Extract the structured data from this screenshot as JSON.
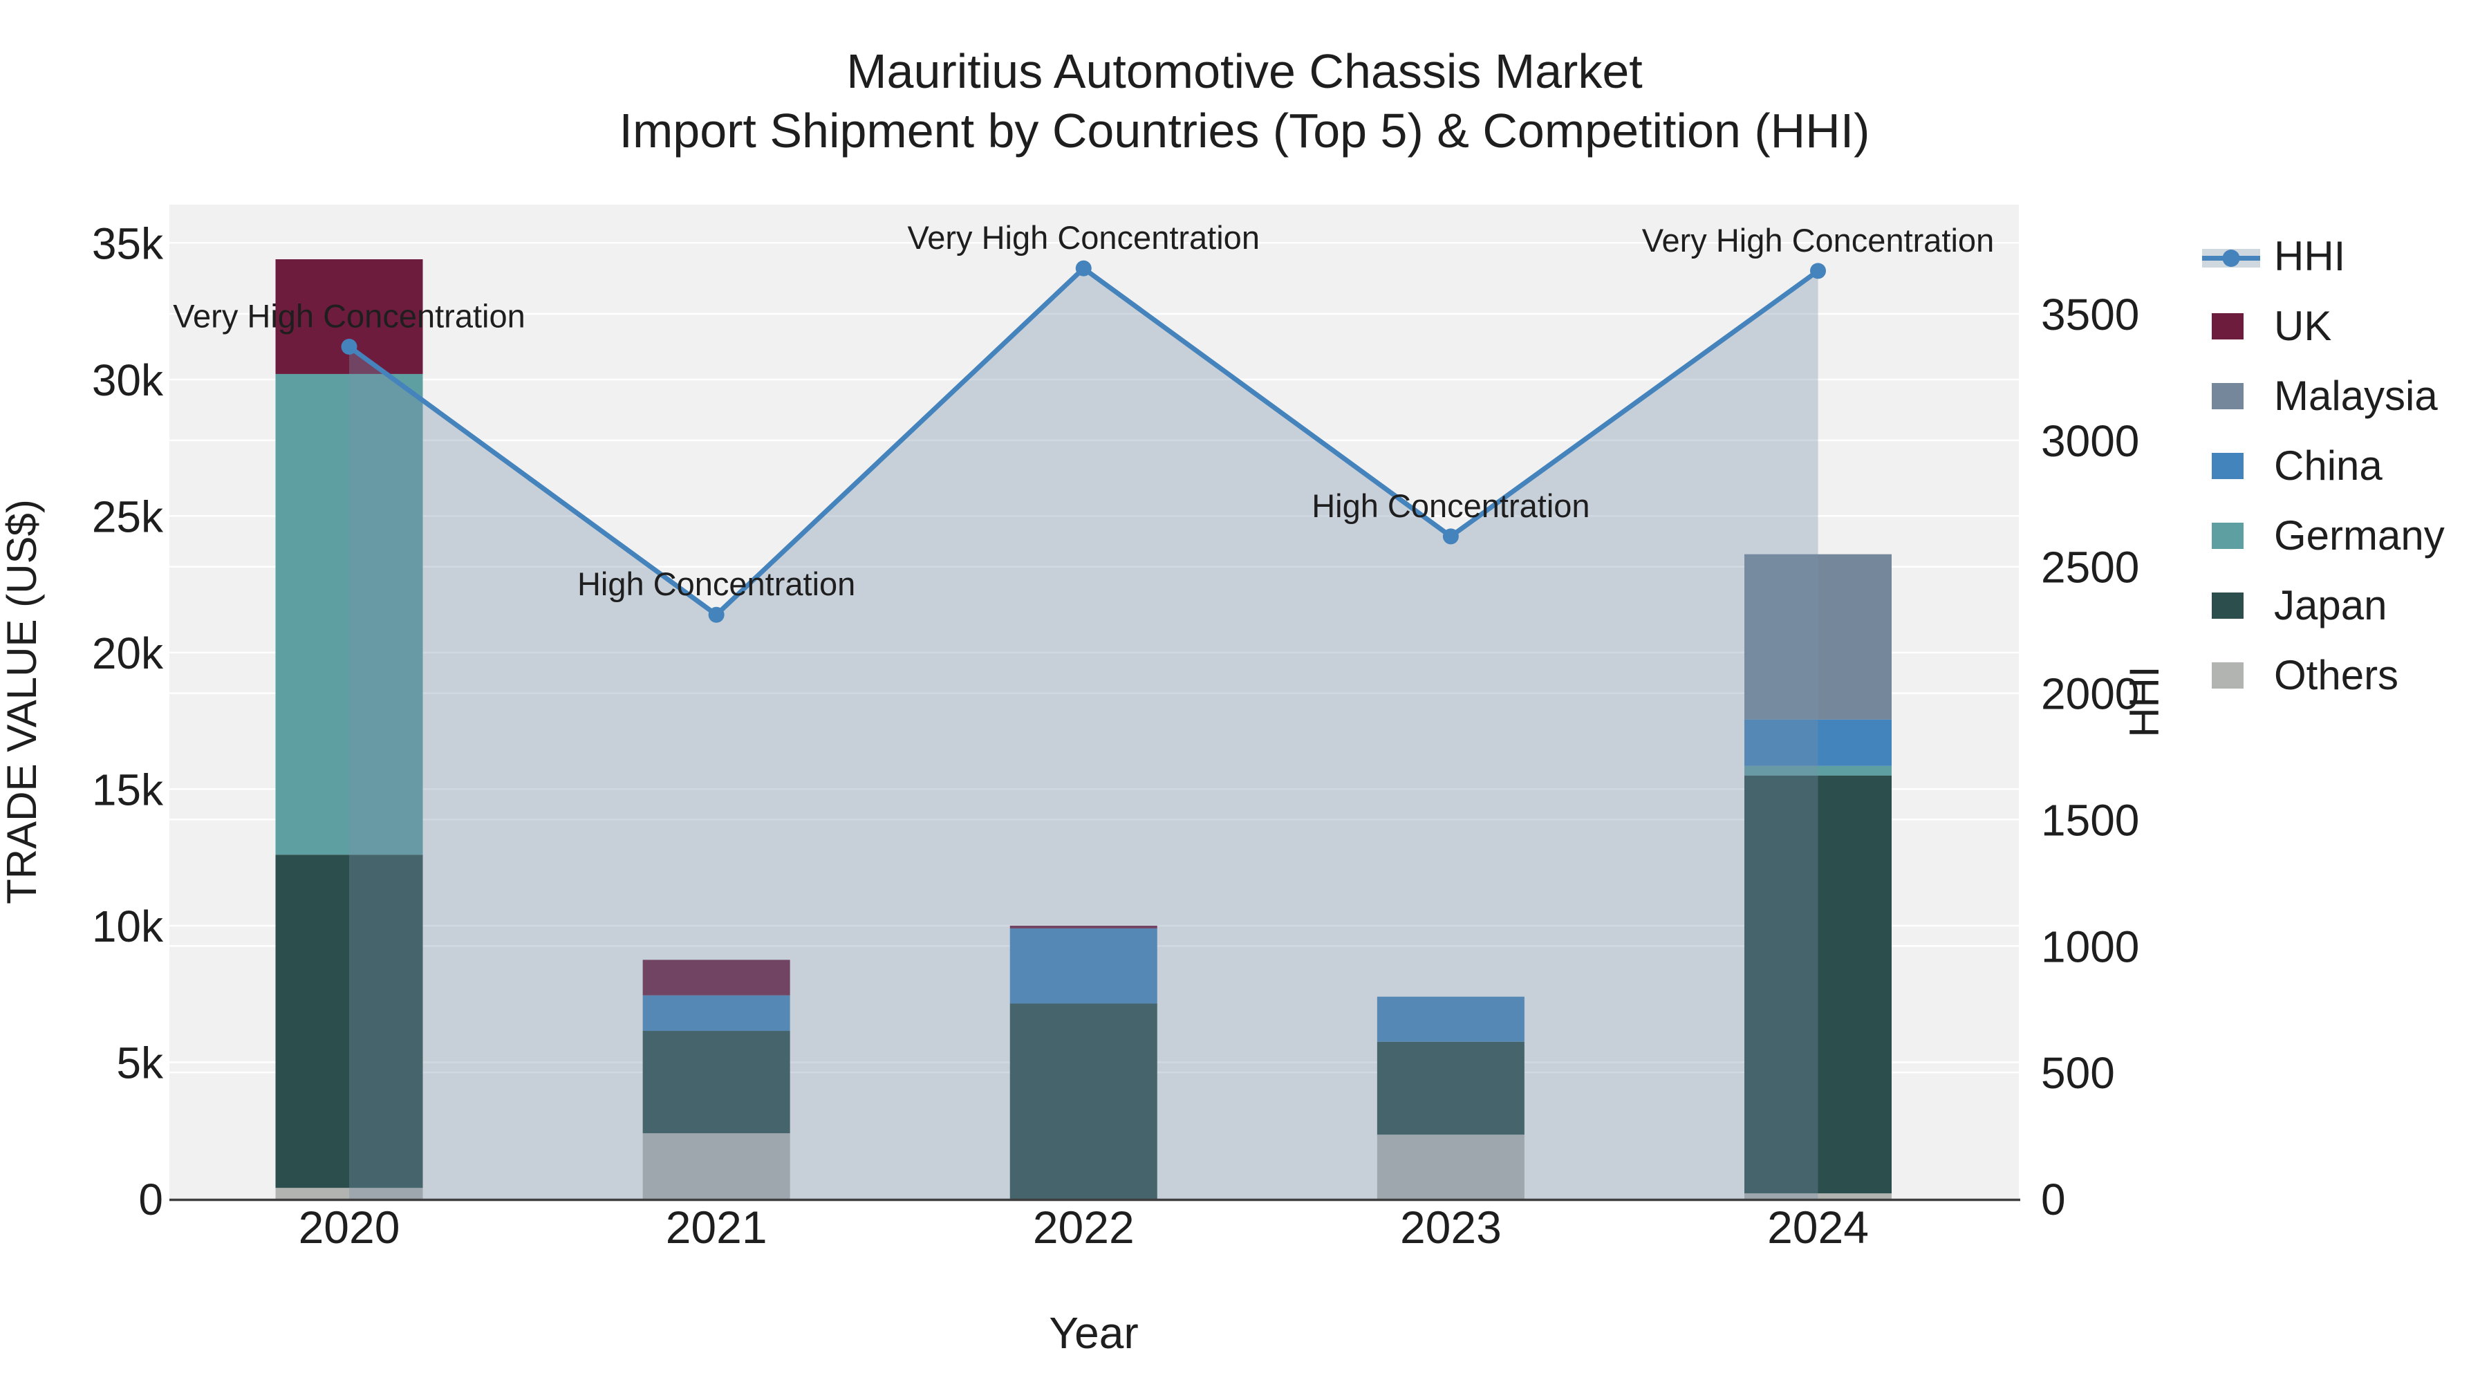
{
  "title": {
    "line1": "Mauritius Automotive Chassis Market",
    "line2": "Import Shipment by Countries (Top 5) & Competition (HHI)"
  },
  "colors": {
    "plot_bg": "#f1f1f1",
    "grid": "#ffffff",
    "axis_line": "#3f3f3f",
    "text": "#1e1e1e",
    "hhi_line": "#4483bc",
    "hhi_area_fill": "#7890a8",
    "hhi_area_opacity": 0.35,
    "legend_line_band": "#d0d8df"
  },
  "chart_data": {
    "type": "combo: stacked bar (trade value) + line with area fill (HHI), dual y-axis",
    "x_categories": [
      "2020",
      "2021",
      "2022",
      "2023",
      "2024"
    ],
    "xlabel": "Year",
    "left_axis": {
      "label": "TRADE VALUE (US$)",
      "tick_labels": [
        "0",
        "5k",
        "10k",
        "15k",
        "20k",
        "25k",
        "30k",
        "35k"
      ],
      "tick_values": [
        0,
        5000,
        10000,
        15000,
        20000,
        25000,
        30000,
        35000
      ],
      "range": [
        0,
        36400
      ]
    },
    "right_axis": {
      "label": "HHI",
      "tick_labels": [
        "0",
        "500",
        "1000",
        "1500",
        "2000",
        "2500",
        "3000",
        "3500"
      ],
      "tick_values": [
        0,
        500,
        1000,
        1500,
        2000,
        2500,
        3000,
        3500
      ],
      "range": [
        0,
        3932
      ]
    },
    "bar_series_bottom_to_top": [
      {
        "name": "Others",
        "color": "#b2b4b1",
        "values": [
          400,
          2400,
          0,
          2350,
          200
        ]
      },
      {
        "name": "Japan",
        "color": "#2c4e4c",
        "values": [
          12200,
          3750,
          7150,
          3400,
          15300
        ]
      },
      {
        "name": "Germany",
        "color": "#5ea0a1",
        "values": [
          17600,
          0,
          0,
          0,
          350
        ]
      },
      {
        "name": "China",
        "color": "#4384bc",
        "values": [
          0,
          1300,
          2750,
          1650,
          1700
        ]
      },
      {
        "name": "Malaysia",
        "color": "#75879b",
        "values": [
          0,
          0,
          0,
          0,
          6050
        ]
      },
      {
        "name": "UK",
        "color": "#6e1c3e",
        "values": [
          4200,
          1300,
          100,
          0,
          0
        ]
      }
    ],
    "hhi_series": {
      "name": "HHI",
      "values": [
        3370,
        2310,
        3680,
        2620,
        3670
      ]
    },
    "annotations": [
      {
        "x": "2020",
        "text": "Very High Concentration"
      },
      {
        "x": "2021",
        "text": "High Concentration"
      },
      {
        "x": "2022",
        "text": "Very High Concentration"
      },
      {
        "x": "2023",
        "text": "High Concentration"
      },
      {
        "x": "2024",
        "text": "Very High Concentration"
      }
    ],
    "legend_order": [
      "HHI",
      "UK",
      "Malaysia",
      "China",
      "Germany",
      "Japan",
      "Others"
    ]
  }
}
